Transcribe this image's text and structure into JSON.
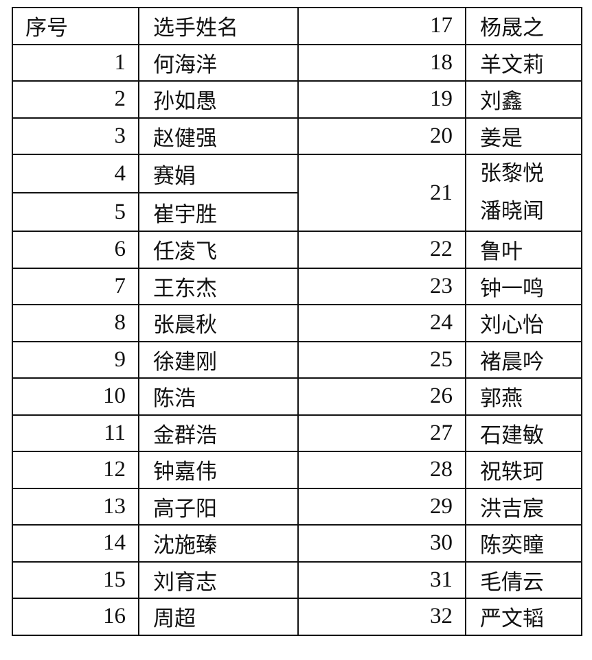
{
  "header": {
    "col_number": "序号",
    "col_name": "选手姓名",
    "right_number": "17",
    "right_name": "杨晟之"
  },
  "left_rows": [
    {
      "number": "1",
      "name": "何海洋"
    },
    {
      "number": "2",
      "name": "孙如愚"
    },
    {
      "number": "3",
      "name": "赵健强"
    },
    {
      "number": "4",
      "name": "赛娟"
    },
    {
      "number": "5",
      "name": "崔宇胜"
    },
    {
      "number": "6",
      "name": "任凌飞"
    },
    {
      "number": "7",
      "name": "王东杰"
    },
    {
      "number": "8",
      "name": "张晨秋"
    },
    {
      "number": "9",
      "name": "徐建刚"
    },
    {
      "number": "10",
      "name": "陈浩"
    },
    {
      "number": "11",
      "name": "金群浩"
    },
    {
      "number": "12",
      "name": "钟嘉伟"
    },
    {
      "number": "13",
      "name": "高子阳"
    },
    {
      "number": "14",
      "name": "沈施臻"
    },
    {
      "number": "15",
      "name": "刘育志"
    },
    {
      "number": "16",
      "name": "周超"
    }
  ],
  "right_rows": [
    {
      "number": "18",
      "names": [
        "羊文莉"
      ],
      "span": 1
    },
    {
      "number": "19",
      "names": [
        "刘鑫"
      ],
      "span": 1
    },
    {
      "number": "20",
      "names": [
        "姜是"
      ],
      "span": 1
    },
    {
      "number": "21",
      "names": [
        "张黎悦",
        "潘晓闻"
      ],
      "span": 2
    },
    {
      "number": "22",
      "names": [
        "鲁叶"
      ],
      "span": 1
    },
    {
      "number": "23",
      "names": [
        "钟一鸣"
      ],
      "span": 1
    },
    {
      "number": "24",
      "names": [
        "刘心怡"
      ],
      "span": 1
    },
    {
      "number": "25",
      "names": [
        "褚晨吟"
      ],
      "span": 1
    },
    {
      "number": "26",
      "names": [
        "郭燕"
      ],
      "span": 1
    },
    {
      "number": "27",
      "names": [
        "石建敏"
      ],
      "span": 1
    },
    {
      "number": "28",
      "names": [
        "祝轶珂"
      ],
      "span": 1
    },
    {
      "number": "29",
      "names": [
        "洪吉宸"
      ],
      "span": 1
    },
    {
      "number": "30",
      "names": [
        "陈奕瞳"
      ],
      "span": 1
    },
    {
      "number": "31",
      "names": [
        "毛倩云"
      ],
      "span": 1
    },
    {
      "number": "32",
      "names": [
        "严文韬"
      ],
      "span": 1
    }
  ]
}
